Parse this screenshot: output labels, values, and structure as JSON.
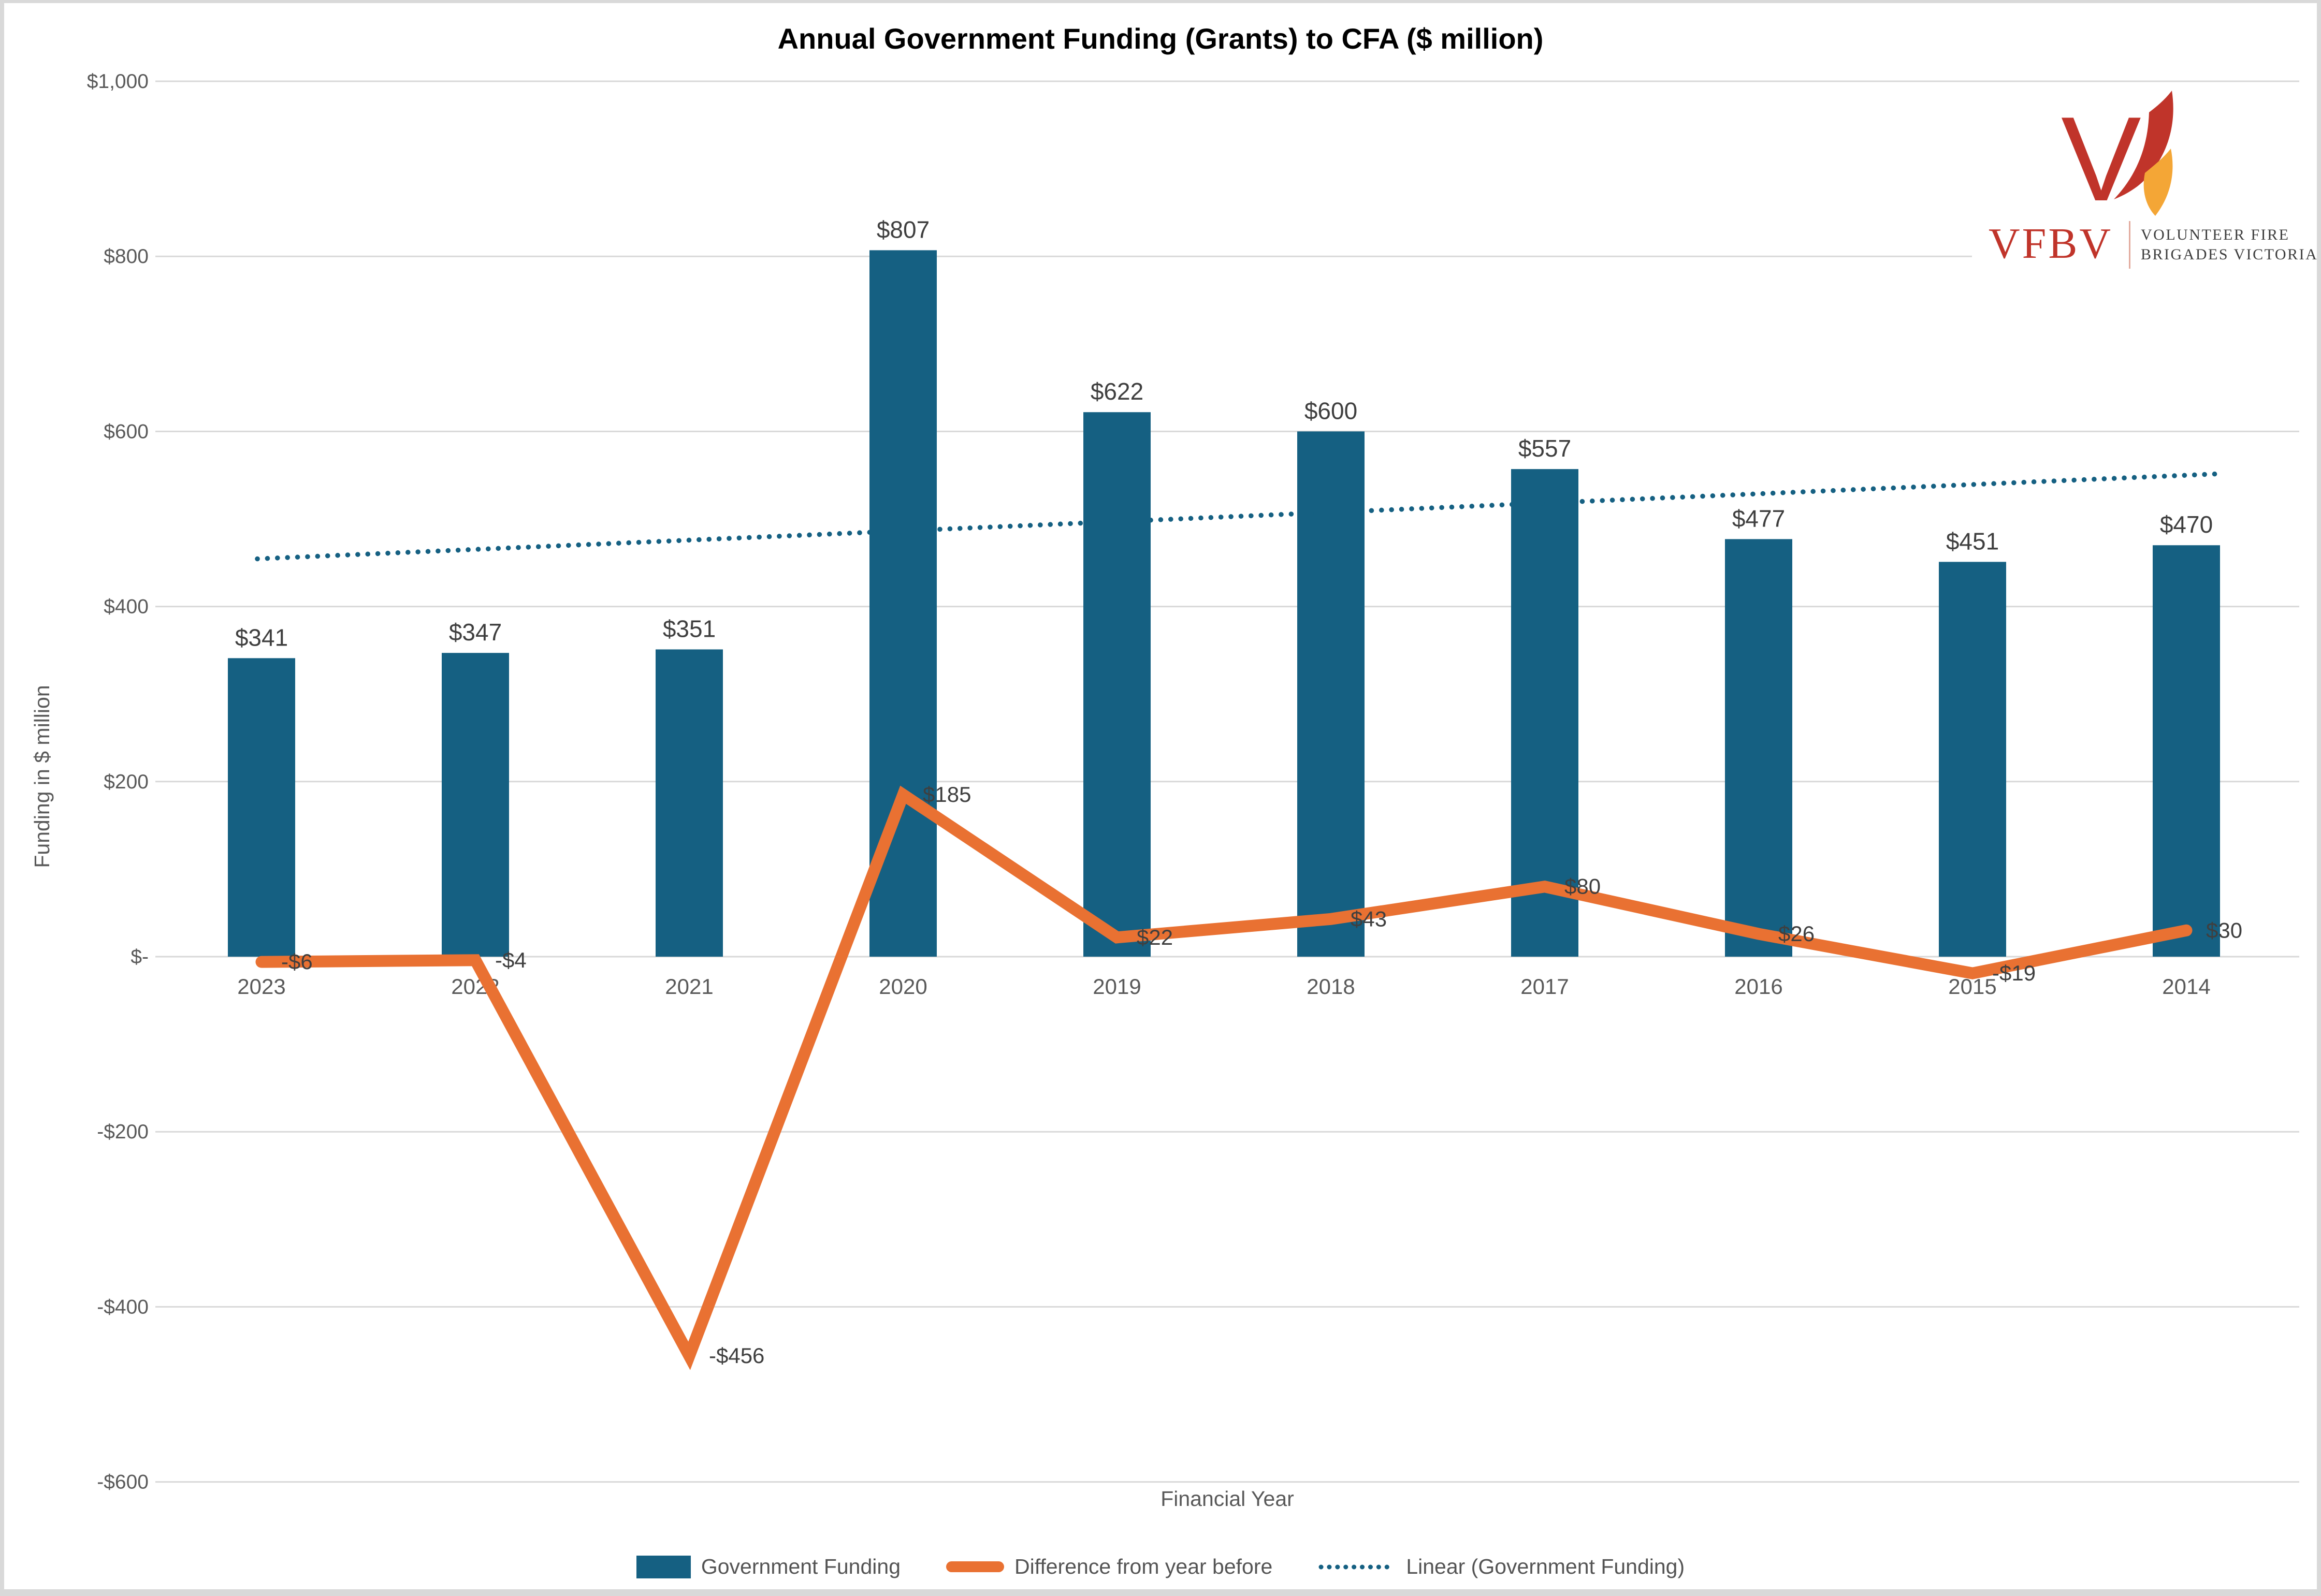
{
  "title": "Annual Government Funding (Grants) to CFA ($ million)",
  "axes": {
    "y_title": "Funding in $ million",
    "x_title": "Financial Year"
  },
  "colors": {
    "bar": "#156082",
    "line": "#E97132",
    "trend": "#156082",
    "grid": "#D9D9D9",
    "axis_text": "#595959",
    "data_label": "#3F3F3F",
    "title": "#000000",
    "logo_red": "#C0342A",
    "logo_flame": "#F4A636",
    "logo_text": "#3D3D3D",
    "frame": "#D9D9D9"
  },
  "chart_data": {
    "type": "bar",
    "title": "Annual Government Funding (Grants) to CFA ($ million)",
    "xlabel": "Financial Year",
    "ylabel": "Funding in $ million",
    "categories": [
      "2023",
      "2022",
      "2021",
      "2020",
      "2019",
      "2018",
      "2017",
      "2016",
      "2015",
      "2014"
    ],
    "series": [
      {
        "name": "Government Funding",
        "type": "bar",
        "values": [
          341,
          347,
          351,
          807,
          622,
          600,
          557,
          477,
          451,
          470
        ],
        "labels": [
          "$341",
          "$347",
          "$351",
          "$807",
          "$622",
          "$600",
          "$557",
          "$477",
          "$451",
          "$470"
        ]
      },
      {
        "name": "Difference from year before",
        "type": "line",
        "values": [
          -6,
          -4,
          -456,
          185,
          22,
          43,
          80,
          26,
          -19,
          30
        ],
        "labels": [
          "-$6",
          "-$4",
          "-$456",
          "$185",
          "$22",
          "$43",
          "$80",
          "$26",
          "-$19",
          "$30"
        ]
      },
      {
        "name": "Linear (Government Funding)",
        "type": "trendline",
        "based_on": "Government Funding"
      }
    ],
    "y_ticks": [
      {
        "value": 1000,
        "label": "$1,000"
      },
      {
        "value": 800,
        "label": "$800"
      },
      {
        "value": 600,
        "label": "$600"
      },
      {
        "value": 400,
        "label": "$400"
      },
      {
        "value": 200,
        "label": "$200"
      },
      {
        "value": 0,
        "label": "$-"
      },
      {
        "value": -200,
        "label": "-$200"
      },
      {
        "value": -400,
        "label": "-$400"
      },
      {
        "value": -600,
        "label": "-$600"
      }
    ],
    "ylim": [
      -600,
      1000
    ],
    "grid": "horizontal",
    "legend_position": "bottom"
  },
  "legend": [
    {
      "label": "Government Funding"
    },
    {
      "label": "Difference from year before"
    },
    {
      "label": "Linear (Government Funding)"
    }
  ],
  "logo": {
    "monogram": "VFBV",
    "line1": "VOLUNTEER FIRE",
    "line2": "BRIGADES VICTORIA"
  }
}
